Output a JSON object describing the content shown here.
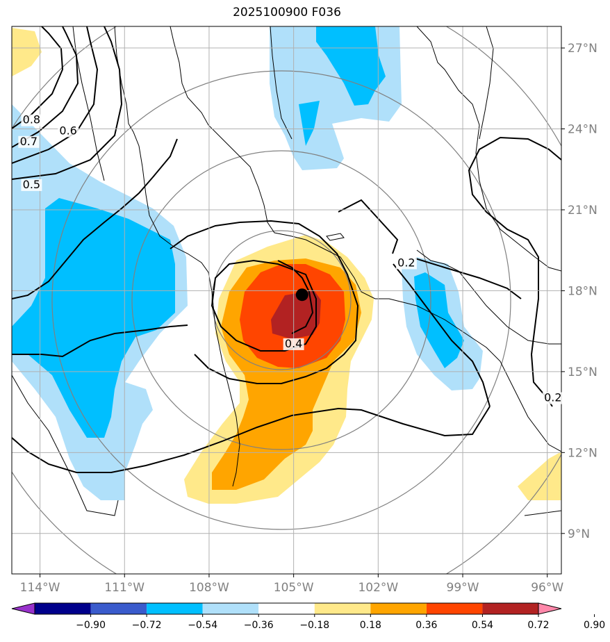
{
  "title": "2025100900 F036",
  "map": {
    "lon_range": [
      -115,
      -95.5
    ],
    "lat_range": [
      7.5,
      27.8
    ],
    "lon_ticks": [
      {
        "value": -114,
        "label": "114°W"
      },
      {
        "value": -111,
        "label": "111°W"
      },
      {
        "value": -108,
        "label": "108°W"
      },
      {
        "value": -105,
        "label": "105°W"
      },
      {
        "value": -102,
        "label": "102°W"
      },
      {
        "value": -99,
        "label": "99°W"
      },
      {
        "value": -96,
        "label": "96°W"
      }
    ],
    "lat_ticks": [
      {
        "value": 27,
        "label": "27°N"
      },
      {
        "value": 24,
        "label": "24°N"
      },
      {
        "value": 21,
        "label": "21°N"
      },
      {
        "value": 18,
        "label": "18°N"
      },
      {
        "value": 15,
        "label": "15°N"
      },
      {
        "value": 12,
        "label": "12°N"
      },
      {
        "value": 9,
        "label": "9°N"
      }
    ],
    "storm_center": {
      "lon": -104.7,
      "lat": 17.85
    },
    "contour_labels": [
      {
        "text": "0.8",
        "lon": -114.3,
        "lat": 24.2
      },
      {
        "text": "0.7",
        "lon": -114.4,
        "lat": 23.4
      },
      {
        "text": "0.6",
        "lon": -113.0,
        "lat": 23.8
      },
      {
        "text": "0.5",
        "lon": -114.3,
        "lat": 21.8
      },
      {
        "text": "0.4",
        "lon": -105.0,
        "lat": 15.9
      },
      {
        "text": "0.2",
        "lon": -101.0,
        "lat": 18.9
      },
      {
        "text": "0.2",
        "lon": -95.8,
        "lat": 13.9
      }
    ],
    "colors": {
      "neg_090": "#9932cc",
      "neg_072": "#00008b",
      "neg_054": "#3a5bcc",
      "neg_036": "#00bfff",
      "neg_018": "#b0e0fa",
      "neutral": "#ffffff",
      "pos_018": "#ffe98a",
      "pos_036": "#ffa500",
      "pos_054": "#ff4500",
      "pos_072": "#b22222",
      "pos_090": "#ff88aa"
    }
  },
  "colorbar": {
    "labels": [
      "−0.90",
      "−0.72",
      "−0.54",
      "−0.36",
      "−0.18",
      "0.18",
      "0.36",
      "0.54",
      "0.72",
      "0.90"
    ],
    "colors": [
      "#9932cc",
      "#00008b",
      "#3a5bcc",
      "#00bfff",
      "#b0e0fa",
      "#ffffff",
      "#ffe98a",
      "#ffa500",
      "#ff4500",
      "#b22222",
      "#ff88aa"
    ]
  }
}
